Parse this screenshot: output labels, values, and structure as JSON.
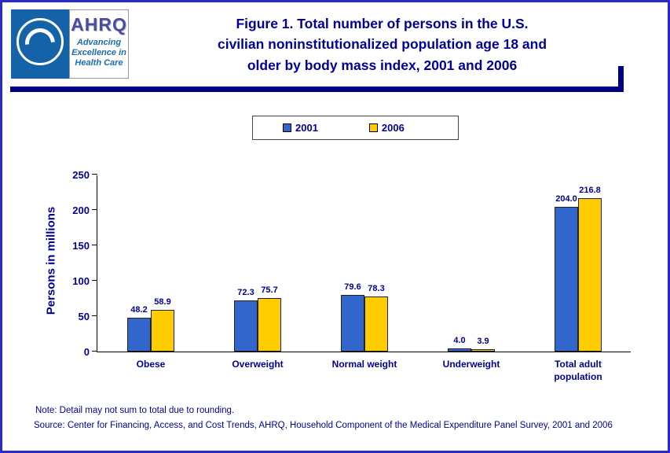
{
  "header": {
    "ahrq": {
      "acronym": "AHRQ",
      "tagline_lines": [
        "Advancing",
        "Excellence in",
        "Health Care"
      ]
    },
    "title_lines": [
      "Figure 1. Total number of persons in the U.S.",
      "civilian noninstitutionalized population age 18 and",
      "older by body mass index, 2001 and 2006"
    ]
  },
  "chart_data": {
    "type": "bar",
    "title": "Figure 1. Total number of persons in the U.S. civilian noninstitutionalized population age 18 and older by body mass index, 2001 and 2006",
    "categories": [
      "Obese",
      "Overweight",
      "Normal weight",
      "Underweight",
      "Total adult population"
    ],
    "series": [
      {
        "name": "2001",
        "color": "#3366CC",
        "values": [
          48.2,
          72.3,
          79.6,
          4.0,
          204.0
        ]
      },
      {
        "name": "2006",
        "color": "#FFCC00",
        "values": [
          58.9,
          75.7,
          78.3,
          3.9,
          216.8
        ]
      }
    ],
    "ylabel": "Persons in millions",
    "ylim": [
      0,
      250
    ],
    "yticks": [
      0,
      50,
      100,
      150,
      200,
      250
    ],
    "grid": false,
    "legend_position": "top"
  },
  "footer": {
    "note": "Note: Detail may not sum to total due to rounding.",
    "source": "Source: Center for Financing, Access, and Cost Trends, AHRQ, Household Component of the Medical Expenditure Panel Survey, 2001 and 2006"
  }
}
